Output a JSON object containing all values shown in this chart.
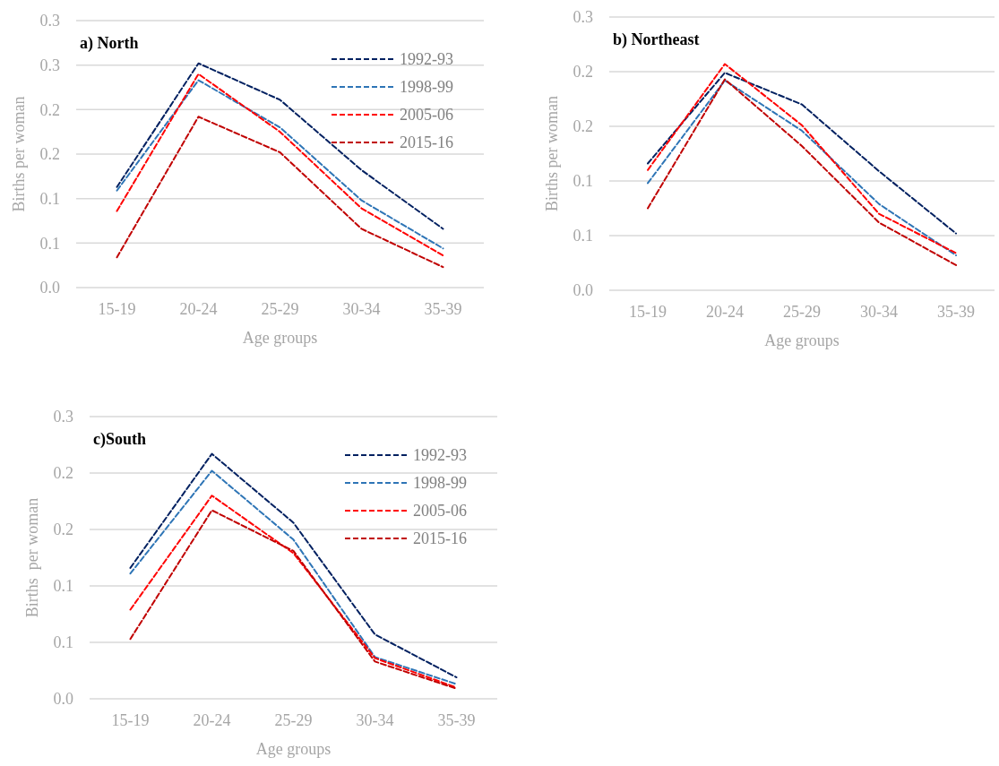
{
  "chart_data": [
    {
      "type": "line",
      "title": "a) North",
      "xlabel": "Age groups",
      "ylabel": "Births per woman",
      "categories": [
        "15-19",
        "20-24",
        "25-29",
        "30-34",
        "35-39"
      ],
      "ylim": [
        0,
        0.3
      ],
      "yticks": [
        {
          "value": 0,
          "label": "0.0"
        },
        {
          "value": 0.05,
          "label": "0.1"
        },
        {
          "value": 0.1,
          "label": "0.1"
        },
        {
          "value": 0.15,
          "label": "0.2"
        },
        {
          "value": 0.2,
          "label": "0.2"
        },
        {
          "value": 0.25,
          "label": "0.3"
        },
        {
          "value": 0.3,
          "label": "0.3"
        }
      ],
      "grid": "y",
      "legend": "top right",
      "line_style": "dashed",
      "series": [
        {
          "name": "1992-93",
          "color": "#002060",
          "values": [
            0.113,
            0.252,
            0.211,
            0.132,
            0.066
          ]
        },
        {
          "name": "1998-99",
          "color": "#2e75b6",
          "values": [
            0.109,
            0.233,
            0.18,
            0.098,
            0.044
          ]
        },
        {
          "name": "2005-06",
          "color": "#ff0000",
          "values": [
            0.086,
            0.24,
            0.175,
            0.089,
            0.036
          ]
        },
        {
          "name": "2015-16",
          "color": "#c00000",
          "values": [
            0.034,
            0.192,
            0.152,
            0.066,
            0.023
          ]
        }
      ]
    },
    {
      "type": "line",
      "title": "b) Northeast",
      "xlabel": "Age groups",
      "ylabel": "Births per woman",
      "categories": [
        "15-19",
        "20-24",
        "25-29",
        "30-34",
        "35-39"
      ],
      "ylim": [
        0,
        0.25
      ],
      "yticks": [
        {
          "value": 0,
          "label": "0.0"
        },
        {
          "value": 0.05,
          "label": "0.1"
        },
        {
          "value": 0.1,
          "label": "0.1"
        },
        {
          "value": 0.15,
          "label": "0.2"
        },
        {
          "value": 0.2,
          "label": "0.2"
        },
        {
          "value": 0.25,
          "label": "0.3"
        }
      ],
      "grid": "y",
      "line_style": "dashed",
      "series": [
        {
          "color": "#002060",
          "values": [
            0.116,
            0.199,
            0.17,
            0.109,
            0.052
          ]
        },
        {
          "color": "#2e75b6",
          "values": [
            0.098,
            0.192,
            0.146,
            0.079,
            0.032
          ]
        },
        {
          "color": "#ff0000",
          "values": [
            0.11,
            0.207,
            0.151,
            0.07,
            0.034
          ]
        },
        {
          "color": "#c00000",
          "values": [
            0.075,
            0.193,
            0.132,
            0.062,
            0.023
          ]
        }
      ]
    },
    {
      "type": "line",
      "title": "c)South",
      "xlabel": "Age groups",
      "ylabel": "Births  per woman",
      "categories": [
        "15-19",
        "20-24",
        "25-29",
        "30-34",
        "35-39"
      ],
      "ylim": [
        0,
        0.25
      ],
      "yticks": [
        {
          "value": 0,
          "label": "0.0"
        },
        {
          "value": 0.05,
          "label": "0.1"
        },
        {
          "value": 0.1,
          "label": "0.1"
        },
        {
          "value": 0.15,
          "label": "0.2"
        },
        {
          "value": 0.2,
          "label": "0.2"
        },
        {
          "value": 0.25,
          "label": "0.3"
        }
      ],
      "grid": "y",
      "legend": "top right",
      "line_style": "dashed",
      "series": [
        {
          "name": "1992-93",
          "color": "#002060",
          "values": [
            0.116,
            0.217,
            0.156,
            0.057,
            0.019
          ]
        },
        {
          "name": "1998-99",
          "color": "#2e75b6",
          "values": [
            0.111,
            0.202,
            0.141,
            0.037,
            0.013
          ]
        },
        {
          "name": "2005-06",
          "color": "#ff0000",
          "values": [
            0.079,
            0.18,
            0.129,
            0.036,
            0.01
          ]
        },
        {
          "name": "2015-16",
          "color": "#c00000",
          "values": [
            0.053,
            0.167,
            0.131,
            0.033,
            0.009
          ]
        }
      ]
    }
  ]
}
